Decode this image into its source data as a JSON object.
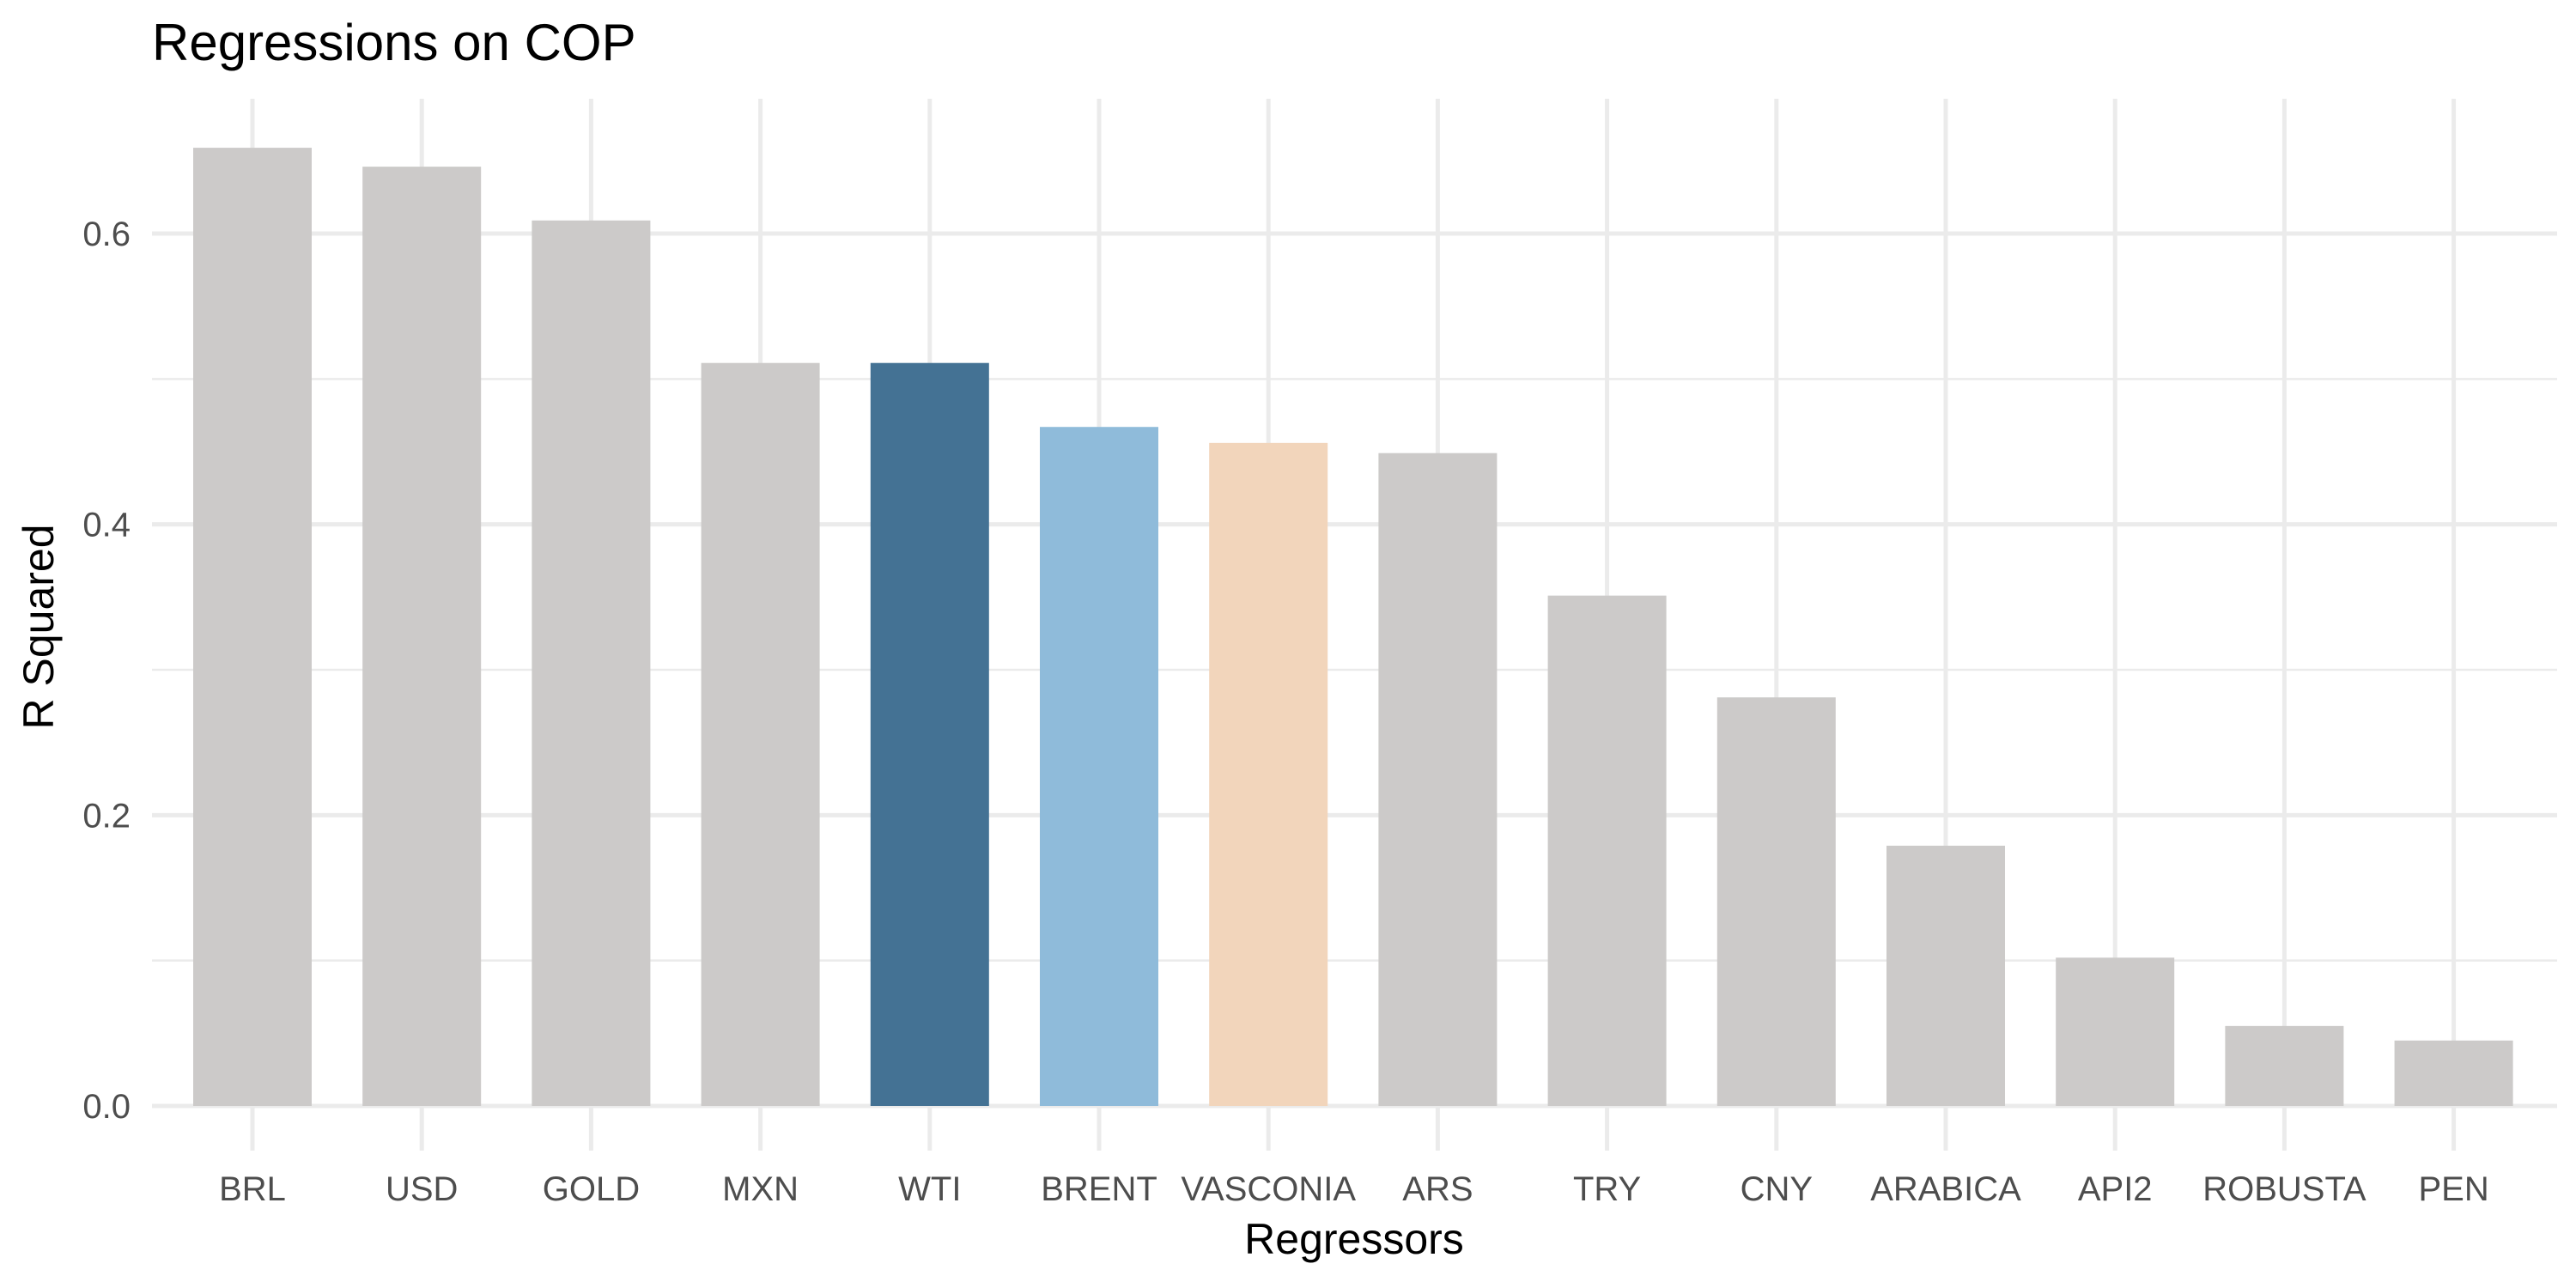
{
  "chart_data": {
    "type": "bar",
    "title": "Regressions on COP",
    "xlabel": "Regressors",
    "ylabel": "R Squared",
    "categories": [
      "BRL",
      "USD",
      "GOLD",
      "MXN",
      "WTI",
      "BRENT",
      "VASCONIA",
      "ARS",
      "TRY",
      "CNY",
      "ARABICA",
      "API2",
      "ROBUSTA",
      "PEN"
    ],
    "values": [
      0.659,
      0.646,
      0.609,
      0.511,
      0.511,
      0.467,
      0.456,
      0.449,
      0.351,
      0.281,
      0.179,
      0.102,
      0.055,
      0.045
    ],
    "colors": [
      "#cccac9",
      "#cccac9",
      "#cccac9",
      "#cccac9",
      "#447294",
      "#8fbbda",
      "#f2d5bb",
      "#cccac9",
      "#cccac9",
      "#cccac9",
      "#cccac9",
      "#cccac9",
      "#cccac9",
      "#cccac9"
    ],
    "ylim": [
      0,
      0.69
    ],
    "yticks": [
      0.0,
      0.2,
      0.4,
      0.6
    ],
    "ytick_labels": [
      "0.0",
      "0.2",
      "0.4",
      "0.6"
    ],
    "grid": true,
    "legend": "none"
  }
}
